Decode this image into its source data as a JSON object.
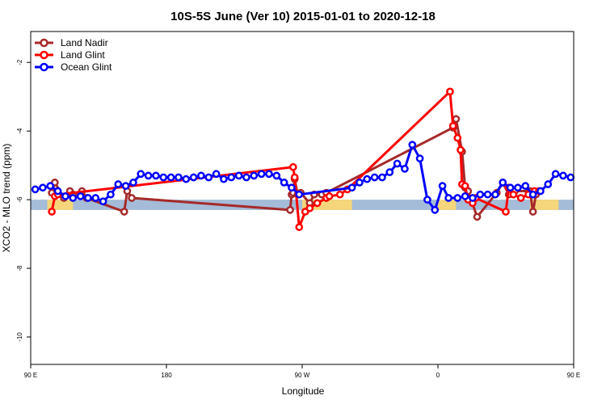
{
  "chart_data": {
    "type": "line",
    "title": "10S-5S June (Ver 10)   2015-01-01 to 2020-12-18",
    "xlabel": "Longitude",
    "ylabel": "XCO2 - MLO trend (ppm)",
    "xlim": [
      90,
      450
    ],
    "ylim": [
      -10.8,
      -1.1
    ],
    "x_ticks": [
      {
        "value": 90,
        "label": "90 E"
      },
      {
        "value": 180,
        "label": "180"
      },
      {
        "value": 270,
        "label": "90 W"
      },
      {
        "value": 360,
        "label": "0"
      },
      {
        "value": 450,
        "label": "90 E"
      },
      {
        "value": 540,
        "label": "180"
      }
    ],
    "y_ticks": [
      -10,
      -8,
      -6,
      -4,
      -2
    ],
    "grid": false,
    "legend_position": "top-left",
    "series": [
      {
        "name": "Land Nadir",
        "color": "#a52a2a",
        "x": [
          104,
          106,
          112,
          116,
          118,
          124,
          127,
          152,
          154,
          157,
          262,
          263,
          264,
          265,
          267,
          269,
          275,
          278,
          283,
          286,
          370,
          372,
          376,
          378,
          380,
          386,
          399,
          403,
          407,
          411,
          421,
          423,
          425
        ],
        "y": [
          -5.8,
          -5.5,
          -5.95,
          -5.75,
          -5.85,
          -5.75,
          -5.95,
          -6.35,
          -5.75,
          -5.95,
          -6.3,
          -5.85,
          -5.8,
          -5.4,
          -5.85,
          -5.8,
          -6.1,
          -5.85,
          -5.85,
          -5.8,
          -3.9,
          -3.65,
          -4.6,
          -5.65,
          -5.75,
          -6.5,
          -5.8,
          -5.5,
          -5.85,
          -5.75,
          -5.75,
          -6.35,
          -5.85
        ]
      },
      {
        "name": "Land Glint",
        "color": "#ff0000",
        "x": [
          104,
          106,
          108,
          264,
          265,
          268,
          272,
          275,
          280,
          286,
          288,
          295,
          300,
          368,
          370,
          373,
          375,
          376,
          378,
          380,
          383,
          385,
          405,
          407,
          410,
          415,
          420,
          424,
          427
        ],
        "y": [
          -6.35,
          -5.9,
          -5.85,
          -5.05,
          -5.35,
          -6.8,
          -6.35,
          -6.25,
          -6.1,
          -5.95,
          -5.9,
          -5.85,
          -5.7,
          -2.85,
          -3.85,
          -4.2,
          -4.55,
          -5.55,
          -5.6,
          -6.0,
          -6.1,
          -5.95,
          -6.35,
          -5.65,
          -5.85,
          -5.95,
          -5.85,
          -5.75,
          -5.75
        ]
      },
      {
        "name": "Ocean Glint",
        "color": "#0000ff",
        "x": [
          93,
          98,
          103,
          108,
          113,
          118,
          123,
          128,
          133,
          138,
          143,
          148,
          153,
          158,
          163,
          168,
          173,
          178,
          183,
          188,
          193,
          198,
          203,
          208,
          213,
          218,
          223,
          228,
          233,
          238,
          243,
          248,
          253,
          258,
          263,
          268,
          303,
          308,
          313,
          318,
          323,
          328,
          333,
          338,
          343,
          348,
          353,
          358,
          363,
          367,
          373,
          378,
          383,
          388,
          393,
          398,
          403,
          408,
          413,
          418,
          423,
          428,
          433,
          438,
          443,
          448
        ],
        "y": [
          -5.7,
          -5.65,
          -5.6,
          -5.75,
          -5.9,
          -5.95,
          -5.9,
          -5.95,
          -5.95,
          -6.05,
          -5.85,
          -5.55,
          -5.6,
          -5.5,
          -5.25,
          -5.3,
          -5.3,
          -5.35,
          -5.35,
          -5.35,
          -5.4,
          -5.35,
          -5.3,
          -5.35,
          -5.25,
          -5.4,
          -5.35,
          -5.3,
          -5.35,
          -5.3,
          -5.25,
          -5.25,
          -5.3,
          -5.5,
          -5.65,
          -5.85,
          -5.65,
          -5.5,
          -5.4,
          -5.35,
          -5.35,
          -5.2,
          -4.95,
          -5.1,
          -4.4,
          -4.8,
          -6.0,
          -6.3,
          -5.6,
          -5.95,
          -5.95,
          -5.9,
          -5.95,
          -5.85,
          -5.85,
          -5.85,
          -5.5,
          -5.65,
          -5.65,
          -5.6,
          -5.85,
          -5.75,
          -5.55,
          -5.25,
          -5.3,
          -5.35
        ]
      }
    ],
    "land_mask": {
      "ocean_color": "#a4bcd8",
      "land_color": "#f5d67a",
      "y_range": [
        -6.3,
        -6.0
      ],
      "land_x_ranges": [
        [
          101,
          118
        ],
        [
          270,
          303
        ],
        [
          360,
          372
        ],
        [
          421,
          440
        ]
      ]
    }
  }
}
